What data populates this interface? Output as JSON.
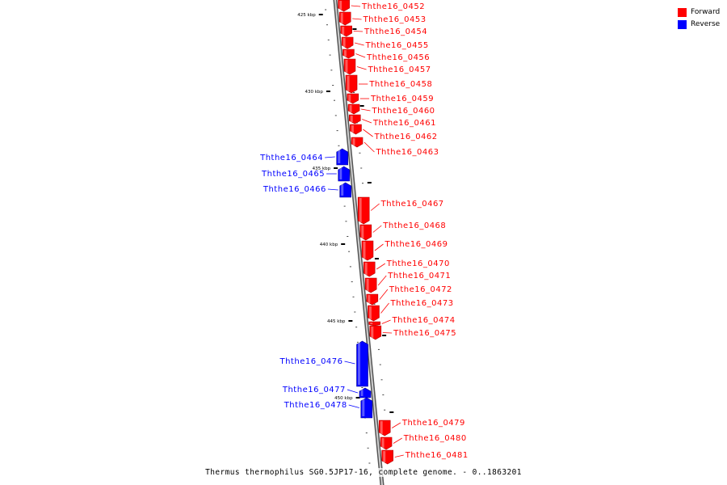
{
  "legend": [
    {
      "label": "Forward",
      "color": "#ff0000"
    },
    {
      "label": "Reverse",
      "color": "#0000ff"
    }
  ],
  "caption": "Thermus thermophilus SG0.5JP17-16, complete genome. - 0..1863201",
  "colors": {
    "forward": "#ff0000",
    "reverse": "#0000ff",
    "backbone": "#a0a0a0"
  },
  "scale_labels": [
    {
      "kbp": 425,
      "label": "425 kbp"
    },
    {
      "kbp": 430,
      "label": "430 kbp"
    },
    {
      "kbp": 435,
      "label": "435 kbp"
    },
    {
      "kbp": 440,
      "label": "440 kbp"
    },
    {
      "kbp": 445,
      "label": "445 kbp"
    },
    {
      "kbp": 450,
      "label": "450 kbp"
    }
  ],
  "genes": [
    {
      "name": "Ththe16_0452",
      "strand": "forward"
    },
    {
      "name": "Ththe16_0453",
      "strand": "forward"
    },
    {
      "name": "Ththe16_0454",
      "strand": "forward"
    },
    {
      "name": "Ththe16_0455",
      "strand": "forward"
    },
    {
      "name": "Ththe16_0456",
      "strand": "forward"
    },
    {
      "name": "Ththe16_0457",
      "strand": "forward"
    },
    {
      "name": "Ththe16_0458",
      "strand": "forward"
    },
    {
      "name": "Ththe16_0459",
      "strand": "forward"
    },
    {
      "name": "Ththe16_0460",
      "strand": "forward"
    },
    {
      "name": "Ththe16_0461",
      "strand": "forward"
    },
    {
      "name": "Ththe16_0462",
      "strand": "forward"
    },
    {
      "name": "Ththe16_0463",
      "strand": "forward"
    },
    {
      "name": "Ththe16_0464",
      "strand": "reverse"
    },
    {
      "name": "Ththe16_0465",
      "strand": "reverse"
    },
    {
      "name": "Ththe16_0466",
      "strand": "reverse"
    },
    {
      "name": "Ththe16_0467",
      "strand": "forward"
    },
    {
      "name": "Ththe16_0468",
      "strand": "forward"
    },
    {
      "name": "Ththe16_0469",
      "strand": "forward"
    },
    {
      "name": "Ththe16_0470",
      "strand": "forward"
    },
    {
      "name": "Ththe16_0471",
      "strand": "forward"
    },
    {
      "name": "Ththe16_0472",
      "strand": "forward"
    },
    {
      "name": "Ththe16_0473",
      "strand": "forward"
    },
    {
      "name": "Ththe16_0474",
      "strand": "forward"
    },
    {
      "name": "Ththe16_0475",
      "strand": "forward"
    },
    {
      "name": "Ththe16_0476",
      "strand": "reverse"
    },
    {
      "name": "Ththe16_0477",
      "strand": "reverse"
    },
    {
      "name": "Ththe16_0478",
      "strand": "reverse"
    },
    {
      "name": "Ththe16_0479",
      "strand": "forward"
    },
    {
      "name": "Ththe16_0480",
      "strand": "forward"
    },
    {
      "name": "Ththe16_0481",
      "strand": "forward"
    }
  ]
}
